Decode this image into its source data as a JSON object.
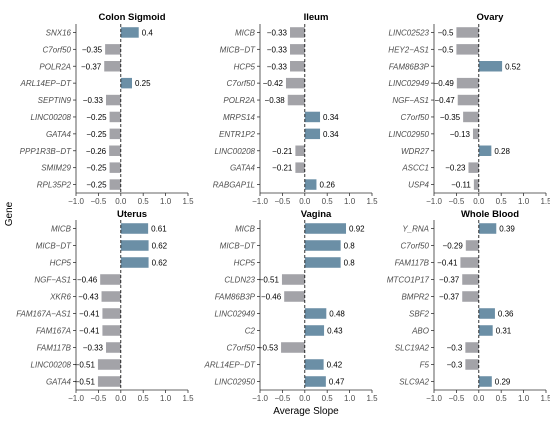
{
  "chart_data": {
    "type": "bar",
    "orientation": "horizontal",
    "xlabel": "Average Slope",
    "ylabel": "Gene",
    "xlim": [
      -1.0,
      1.5
    ],
    "xticks": [
      "−1.0",
      "−0.5",
      "0.0",
      "0.5",
      "1.0",
      "1.5"
    ],
    "reference_line": 0,
    "colors": {
      "positive": "#6b8fa6",
      "negative": "#a3a3a8"
    },
    "panels": [
      {
        "title": "Colon Sigmoid",
        "genes": [
          "SNX16",
          "C7orf50",
          "POLR2A",
          "ARL14EP−DT",
          "SEPTIN9",
          "LINC00208",
          "GATA4",
          "PPP1R3B−DT",
          "SMIM29",
          "RPL35P2"
        ],
        "values": [
          0.4,
          -0.35,
          -0.37,
          0.25,
          -0.33,
          -0.25,
          -0.25,
          -0.26,
          -0.25,
          -0.25
        ],
        "value_labels": [
          "0.4",
          "−0.35",
          "−0.37",
          "0.25",
          "−0.33",
          "−0.25",
          "−0.25",
          "−0.26",
          "−0.25",
          "−0.25"
        ]
      },
      {
        "title": "Ileum",
        "genes": [
          "MICB",
          "MICB−DT",
          "HCP5",
          "C7orf50",
          "POLR2A",
          "MRPS14",
          "ENTR1P2",
          "LINC00208",
          "GATA4",
          "RABGAP1L"
        ],
        "values": [
          -0.33,
          -0.33,
          -0.33,
          -0.42,
          -0.38,
          0.34,
          0.34,
          -0.21,
          -0.21,
          0.26
        ],
        "value_labels": [
          "−0.33",
          "−0.33",
          "−0.33",
          "−0.42",
          "−0.38",
          "0.34",
          "0.34",
          "−0.21",
          "−0.21",
          "0.26"
        ]
      },
      {
        "title": "Ovary",
        "genes": [
          "LINC02523",
          "HEY2−AS1",
          "FAM86B3P",
          "LINC02949",
          "NGF−AS1",
          "C7orf50",
          "LINC02950",
          "WDR27",
          "ASCC1",
          "USP4"
        ],
        "values": [
          -0.5,
          -0.5,
          0.52,
          -0.49,
          -0.47,
          -0.35,
          -0.13,
          0.28,
          -0.23,
          -0.11
        ],
        "value_labels": [
          "−0.5",
          "−0.5",
          "0.52",
          "−0.49",
          "−0.47",
          "−0.35",
          "−0.13",
          "0.28",
          "−0.23",
          "−0.11"
        ]
      },
      {
        "title": "Uterus",
        "genes": [
          "MICB",
          "MICB−DT",
          "HCP5",
          "NGF−AS1",
          "XKR6",
          "FAM167A−AS1",
          "FAM167A",
          "FAM117B",
          "LINC00208",
          "GATA4"
        ],
        "values": [
          0.61,
          0.62,
          0.62,
          -0.46,
          -0.43,
          -0.41,
          -0.41,
          -0.33,
          -0.51,
          -0.51
        ],
        "value_labels": [
          "0.61",
          "0.62",
          "0.62",
          "−0.46",
          "−0.43",
          "−0.41",
          "−0.41",
          "−0.33",
          "−0.51",
          "−0.51"
        ]
      },
      {
        "title": "Vagina",
        "genes": [
          "MICB",
          "MICB−DT",
          "HCP5",
          "CLDN23",
          "FAM86B3P",
          "LINC02949",
          "C2",
          "C7orf50",
          "ARL14EP−DT",
          "LINC02950"
        ],
        "values": [
          0.92,
          0.8,
          0.8,
          -0.51,
          -0.46,
          0.48,
          0.43,
          -0.53,
          0.42,
          0.47
        ],
        "value_labels": [
          "0.92",
          "0.8",
          "0.8",
          "−0.51",
          "−0.46",
          "0.48",
          "0.43",
          "−0.53",
          "0.42",
          "0.47"
        ]
      },
      {
        "title": "Whole Blood",
        "genes": [
          "Y_RNA",
          "C7orf50",
          "FAM117B",
          "MTCO1P17",
          "BMPR2",
          "SBF2",
          "ABO",
          "SLC19A2",
          "F5",
          "SLC9A2"
        ],
        "values": [
          0.39,
          -0.29,
          -0.41,
          -0.37,
          -0.37,
          0.36,
          0.31,
          -0.3,
          -0.3,
          0.29
        ],
        "value_labels": [
          "0.39",
          "−0.29",
          "−0.41",
          "−0.37",
          "−0.37",
          "0.36",
          "0.31",
          "−0.3",
          "−0.3",
          "0.29"
        ]
      }
    ]
  }
}
